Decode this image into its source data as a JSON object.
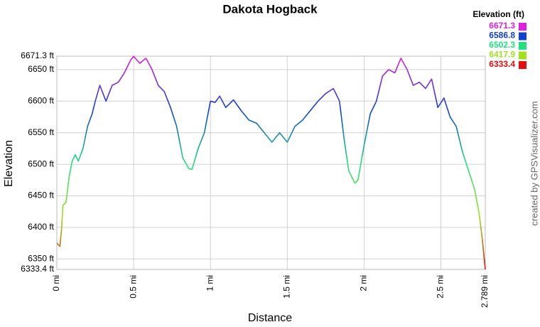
{
  "chart_data": {
    "type": "line",
    "title": "Dakota Hogback",
    "x_label": "Distance",
    "y_label": "Elevation",
    "credit": "created by GPSVisualizer.com",
    "legend_title": "Elevation (ft)",
    "color_scale": [
      {
        "value": 6671.3,
        "color": "#e020e0"
      },
      {
        "value": 6586.8,
        "color": "#1040d0"
      },
      {
        "value": 6502.3,
        "color": "#20e080"
      },
      {
        "value": 6417.9,
        "color": "#a0e020"
      },
      {
        "value": 6333.4,
        "color": "#e01010"
      }
    ],
    "x": [
      0,
      0.02,
      0.03,
      0.04,
      0.06,
      0.08,
      0.1,
      0.12,
      0.14,
      0.17,
      0.2,
      0.23,
      0.25,
      0.28,
      0.32,
      0.36,
      0.4,
      0.44,
      0.48,
      0.5,
      0.54,
      0.58,
      0.62,
      0.66,
      0.7,
      0.74,
      0.78,
      0.82,
      0.86,
      0.88,
      0.92,
      0.96,
      1.0,
      1.03,
      1.06,
      1.1,
      1.15,
      1.2,
      1.25,
      1.3,
      1.35,
      1.4,
      1.45,
      1.5,
      1.55,
      1.6,
      1.65,
      1.7,
      1.75,
      1.8,
      1.84,
      1.87,
      1.9,
      1.94,
      1.96,
      2.0,
      2.04,
      2.08,
      2.12,
      2.16,
      2.2,
      2.24,
      2.28,
      2.32,
      2.36,
      2.4,
      2.44,
      2.48,
      2.52,
      2.56,
      2.6,
      2.64,
      2.68,
      2.72,
      2.75,
      2.77,
      2.789
    ],
    "series": [
      {
        "name": "Elevation",
        "values": [
          6375,
          6370,
          6395,
          6435,
          6440,
          6480,
          6505,
          6515,
          6505,
          6525,
          6560,
          6580,
          6600,
          6625,
          6600,
          6625,
          6630,
          6645,
          6665,
          6671,
          6660,
          6668,
          6650,
          6625,
          6615,
          6590,
          6560,
          6510,
          6493,
          6492,
          6525,
          6550,
          6600,
          6598,
          6608,
          6590,
          6602,
          6585,
          6570,
          6565,
          6550,
          6535,
          6550,
          6535,
          6560,
          6570,
          6585,
          6600,
          6612,
          6620,
          6600,
          6540,
          6490,
          6470,
          6475,
          6530,
          6580,
          6600,
          6640,
          6650,
          6645,
          6668,
          6650,
          6625,
          6630,
          6620,
          6635,
          6590,
          6605,
          6575,
          6560,
          6520,
          6490,
          6460,
          6420,
          6380,
          6333.4
        ]
      }
    ],
    "xlim": [
      0,
      2.789
    ],
    "xticks": [
      {
        "value": 0,
        "label": "0 mi"
      },
      {
        "value": 0.5,
        "label": "0.5 mi"
      },
      {
        "value": 1,
        "label": "1 mi"
      },
      {
        "value": 1.5,
        "label": "1.5 mi"
      },
      {
        "value": 2,
        "label": "2 mi"
      },
      {
        "value": 2.5,
        "label": "2.5 mi"
      },
      {
        "value": 2.789,
        "label": "2.789 mi"
      }
    ],
    "ylim": [
      6333.4,
      6671.3
    ],
    "yticks": [
      {
        "value": 6333.4,
        "label": "6333.4 ft"
      },
      {
        "value": 6350,
        "label": "6350 ft"
      },
      {
        "value": 6400,
        "label": "6400 ft"
      },
      {
        "value": 6450,
        "label": "6450 ft"
      },
      {
        "value": 6500,
        "label": "6500 ft"
      },
      {
        "value": 6550,
        "label": "6550 ft"
      },
      {
        "value": 6600,
        "label": "6600 ft"
      },
      {
        "value": 6650,
        "label": "6650 ft"
      },
      {
        "value": 6671.3,
        "label": "6671.3 ft"
      }
    ],
    "grid": true
  }
}
